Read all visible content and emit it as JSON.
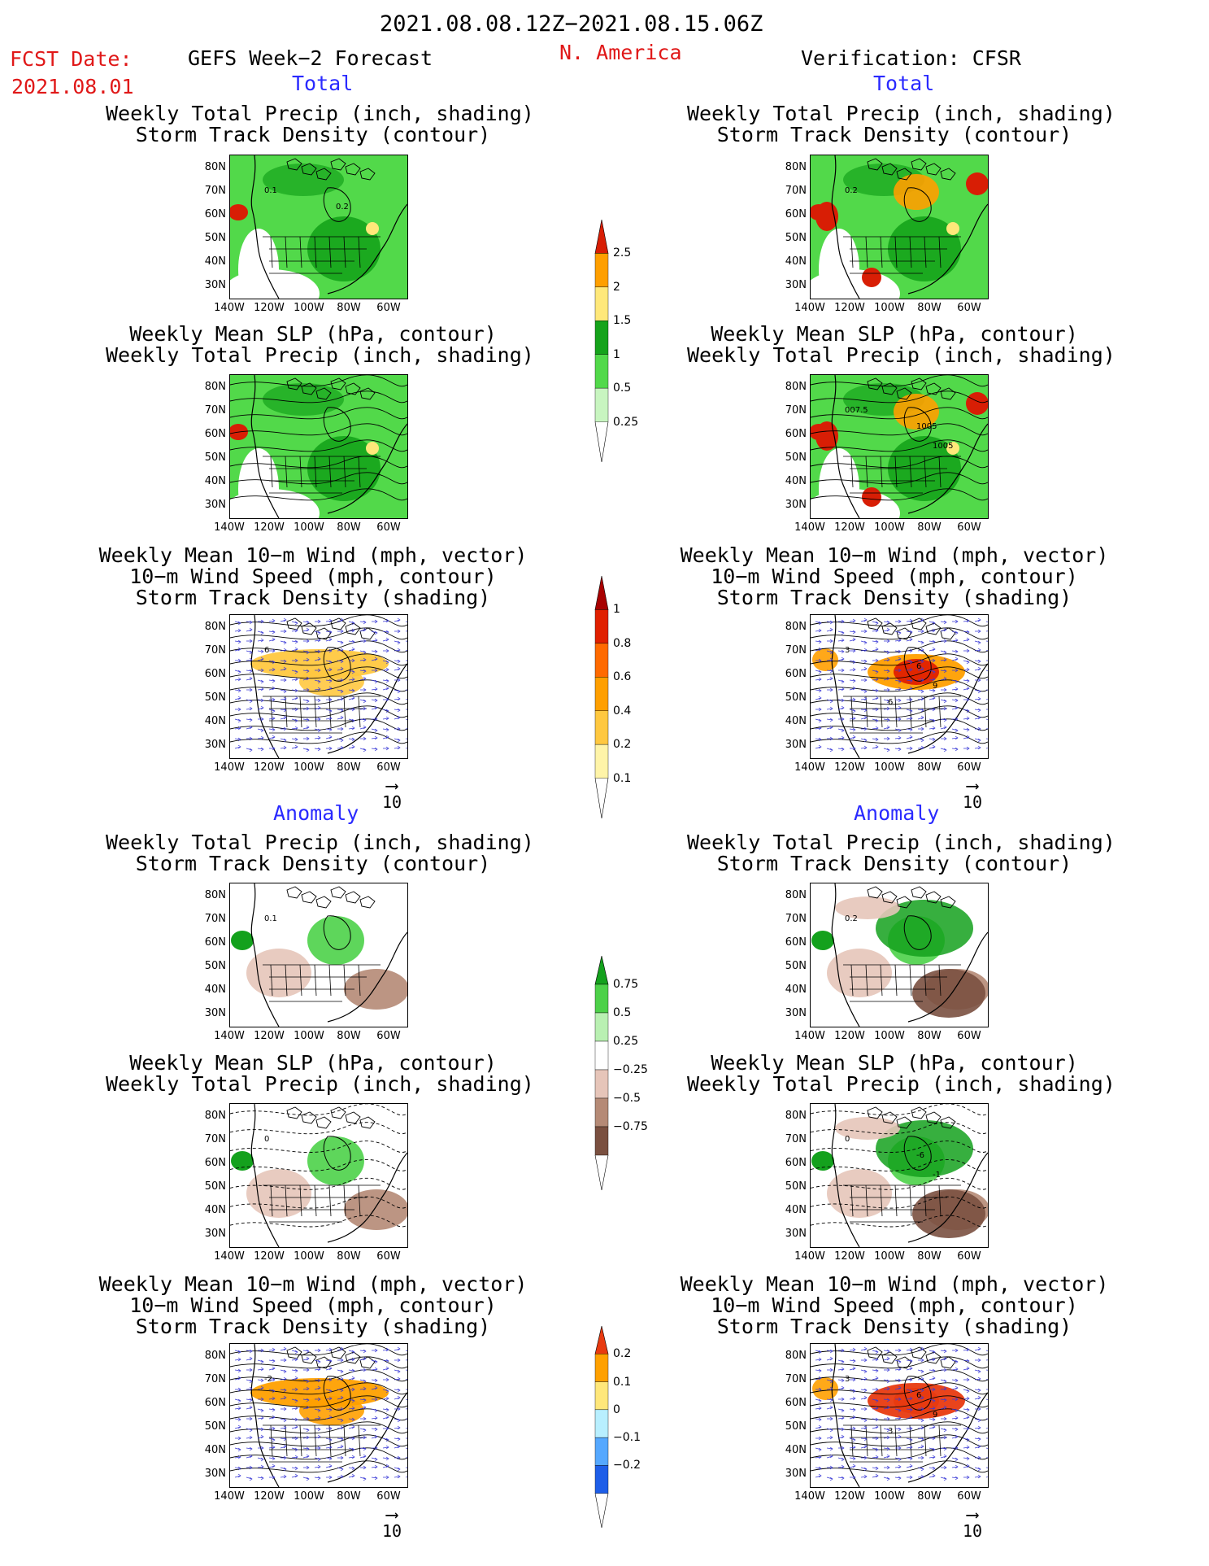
{
  "header": {
    "date_range": "2021.08.08.12Z−2021.08.15.06Z",
    "fcst_label": "FCST Date:",
    "fcst_date": "2021.08.01",
    "left_title": "GEFS Week−2 Forecast",
    "center_region": "N. America",
    "right_title": "Verification: CFSR"
  },
  "sections": {
    "total": "Total",
    "anomaly": "Anomaly"
  },
  "panel_titles": {
    "precip_track": [
      "Weekly Total Precip (inch, shading)",
      "Storm Track Density (contour)"
    ],
    "slp_precip": [
      "Weekly Mean SLP (hPa, contour)",
      "Weekly Total Precip (inch, shading)"
    ],
    "wind_track": [
      "Weekly Mean 10−m Wind (mph, vector)",
      "10−m Wind Speed (mph, contour)",
      "Storm Track Density (shading)"
    ]
  },
  "axes": {
    "lat_labels": [
      "80N",
      "70N",
      "60N",
      "50N",
      "40N",
      "30N"
    ],
    "lon_labels": [
      "140W",
      "120W",
      "100W",
      "80W",
      "60W"
    ]
  },
  "vector_reference": "10",
  "map_annotations": {
    "fc_precip_total": [
      "0.1",
      "0.2"
    ],
    "ver_precip_total": [
      "0.2"
    ],
    "ver_slp_total": [
      "007.5",
      "1005",
      "1005"
    ],
    "fc_wind_total": [
      "6"
    ],
    "ver_wind_total": [
      "3",
      "6",
      "9",
      "6"
    ],
    "fc_precip_anom": [
      "0.1"
    ],
    "ver_precip_anom": [
      "0.2"
    ],
    "fc_slp_anom": [
      "0"
    ],
    "ver_slp_anom": [
      "0",
      "-6",
      "-1"
    ],
    "fc_wind_anom": [
      "-2"
    ],
    "ver_wind_anom": [
      "3",
      "6",
      "9",
      "3"
    ]
  },
  "colorbars": {
    "precip_total": {
      "labels": [
        "2.5",
        "2",
        "1.5",
        "1",
        "0.5",
        "0.25"
      ],
      "colors": [
        "#d81e05",
        "#ff9f00",
        "#ffe87a",
        "#15a31b",
        "#52d94a",
        "#c8f5c0"
      ]
    },
    "track_total": {
      "labels": [
        "1",
        "0.8",
        "0.6",
        "0.4",
        "0.2",
        "0.1"
      ],
      "colors": [
        "#a80000",
        "#e02000",
        "#ff6a00",
        "#ff9f00",
        "#ffc840",
        "#fff4a8"
      ]
    },
    "precip_anom": {
      "labels": [
        "0.75",
        "0.5",
        "0.25",
        "−0.25",
        "−0.5",
        "−0.75"
      ],
      "colors": [
        "#14a11d",
        "#4dd149",
        "#b9f0b2",
        "#ffffff",
        "#e6c5b9",
        "#b58a76",
        "#7a5040"
      ]
    },
    "track_anom": {
      "labels": [
        "0.2",
        "0.1",
        "0",
        "−0.1",
        "−0.2"
      ],
      "colors": [
        "#e83a10",
        "#ffa000",
        "#ffe77a",
        "#b8efff",
        "#55a8ff",
        "#1e5ee8"
      ]
    }
  }
}
